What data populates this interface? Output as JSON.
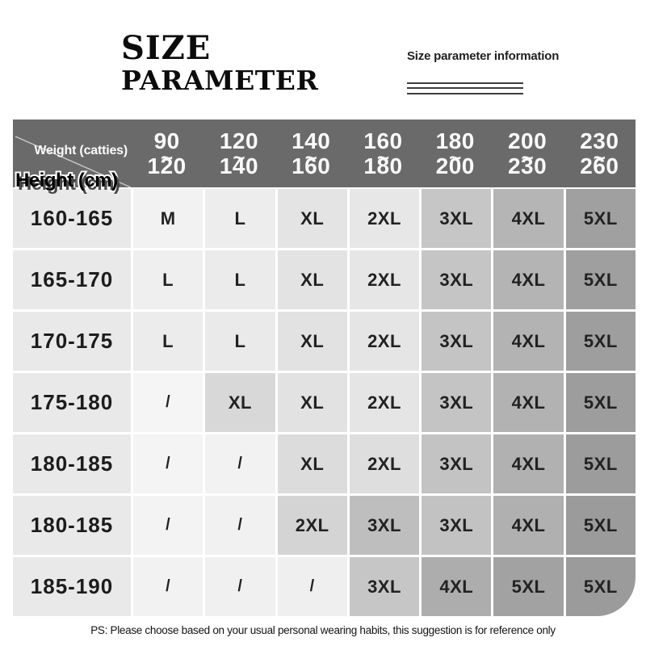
{
  "title": {
    "line1": "SIZE",
    "line2": "PARAMETER"
  },
  "info": {
    "label": "Size parameter information"
  },
  "table": {
    "corner": {
      "weight_label": "Weight (catties)",
      "height_label": "Height (cm)"
    },
    "tilde": "~",
    "weight_columns": [
      {
        "from": "90",
        "to": "120"
      },
      {
        "from": "120",
        "to": "140"
      },
      {
        "from": "140",
        "to": "160"
      },
      {
        "from": "160",
        "to": "180"
      },
      {
        "from": "180",
        "to": "200"
      },
      {
        "from": "200",
        "to": "230"
      },
      {
        "from": "230",
        "to": "260"
      }
    ],
    "rows": [
      {
        "height": "160-165",
        "cells": [
          {
            "v": "M",
            "bg": "#f2f2f2"
          },
          {
            "v": "L",
            "bg": "#ededed"
          },
          {
            "v": "XL",
            "bg": "#e4e4e4"
          },
          {
            "v": "2XL",
            "bg": "#e7e7e7"
          },
          {
            "v": "3XL",
            "bg": "#c6c6c6"
          },
          {
            "v": "4XL",
            "bg": "#b5b5b5"
          },
          {
            "v": "5XL",
            "bg": "#a0a0a0"
          }
        ]
      },
      {
        "height": "165-170",
        "cells": [
          {
            "v": "L",
            "bg": "#efefef"
          },
          {
            "v": "L",
            "bg": "#ebebeb"
          },
          {
            "v": "XL",
            "bg": "#e3e3e3"
          },
          {
            "v": "2XL",
            "bg": "#e6e6e6"
          },
          {
            "v": "3XL",
            "bg": "#c5c5c5"
          },
          {
            "v": "4XL",
            "bg": "#b4b4b4"
          },
          {
            "v": "5XL",
            "bg": "#9f9f9f"
          }
        ]
      },
      {
        "height": "170-175",
        "cells": [
          {
            "v": "L",
            "bg": "#ececec"
          },
          {
            "v": "L",
            "bg": "#eaeaea"
          },
          {
            "v": "XL",
            "bg": "#e2e2e2"
          },
          {
            "v": "2XL",
            "bg": "#e5e5e5"
          },
          {
            "v": "3XL",
            "bg": "#c4c4c4"
          },
          {
            "v": "4XL",
            "bg": "#b3b3b3"
          },
          {
            "v": "5XL",
            "bg": "#9e9e9e"
          }
        ]
      },
      {
        "height": "175-180",
        "cells": [
          {
            "v": "/",
            "bg": "#f5f5f5"
          },
          {
            "v": "XL",
            "bg": "#d8d8d8"
          },
          {
            "v": "XL",
            "bg": "#e2e2e2"
          },
          {
            "v": "2XL",
            "bg": "#e5e5e5"
          },
          {
            "v": "3XL",
            "bg": "#c4c4c4"
          },
          {
            "v": "4XL",
            "bg": "#b2b2b2"
          },
          {
            "v": "5XL",
            "bg": "#9d9d9d"
          }
        ]
      },
      {
        "height": "180-185",
        "cells": [
          {
            "v": "/",
            "bg": "#f4f4f4"
          },
          {
            "v": "/",
            "bg": "#f2f2f2"
          },
          {
            "v": "XL",
            "bg": "#dcdcdc"
          },
          {
            "v": "2XL",
            "bg": "#dedede"
          },
          {
            "v": "3XL",
            "bg": "#c3c3c3"
          },
          {
            "v": "4XL",
            "bg": "#b1b1b1"
          },
          {
            "v": "5XL",
            "bg": "#9c9c9c"
          }
        ]
      },
      {
        "height": "180-185",
        "cells": [
          {
            "v": "/",
            "bg": "#f3f3f3"
          },
          {
            "v": "/",
            "bg": "#f1f1f1"
          },
          {
            "v": "2XL",
            "bg": "#d4d4d4"
          },
          {
            "v": "3XL",
            "bg": "#bebebe"
          },
          {
            "v": "3XL",
            "bg": "#c2c2c2"
          },
          {
            "v": "4XL",
            "bg": "#b0b0b0"
          },
          {
            "v": "5XL",
            "bg": "#9b9b9b"
          }
        ]
      },
      {
        "height": "185-190",
        "cells": [
          {
            "v": "/",
            "bg": "#f2f2f2"
          },
          {
            "v": "/",
            "bg": "#f0f0f0"
          },
          {
            "v": "/",
            "bg": "#efefef"
          },
          {
            "v": "3XL",
            "bg": "#c6c6c6"
          },
          {
            "v": "4XL",
            "bg": "#adadad"
          },
          {
            "v": "5XL",
            "bg": "#a2a2a2"
          },
          {
            "v": "5XL",
            "bg": "#9b9b9b"
          }
        ]
      }
    ]
  },
  "footer": {
    "note": "PS: Please choose based on your usual personal wearing habits, this suggestion is for reference only"
  },
  "colors": {
    "page_bg": "#ffffff",
    "header_bg": "#6a6a6a",
    "header_text": "#fafafa",
    "height_col_bg": "#e9e9e9",
    "diagonal_line": "#cccccc",
    "info_line": "#3c3c3c",
    "title_text": "#0c0c0c"
  },
  "chart_data": {
    "type": "table",
    "title": "SIZE PARAMETER",
    "subtitle": "Size parameter information",
    "row_axis_label": "Height (cm)",
    "column_axis_label": "Weight (catties)",
    "columns": [
      "90~120",
      "120~140",
      "140~160",
      "160~180",
      "180~200",
      "200~230",
      "230~260"
    ],
    "rows": [
      {
        "height": "160-165",
        "sizes": [
          "M",
          "L",
          "XL",
          "2XL",
          "3XL",
          "4XL",
          "5XL"
        ]
      },
      {
        "height": "165-170",
        "sizes": [
          "L",
          "L",
          "XL",
          "2XL",
          "3XL",
          "4XL",
          "5XL"
        ]
      },
      {
        "height": "170-175",
        "sizes": [
          "L",
          "L",
          "XL",
          "2XL",
          "3XL",
          "4XL",
          "5XL"
        ]
      },
      {
        "height": "175-180",
        "sizes": [
          "/",
          "XL",
          "XL",
          "2XL",
          "3XL",
          "4XL",
          "5XL"
        ]
      },
      {
        "height": "180-185",
        "sizes": [
          "/",
          "/",
          "XL",
          "2XL",
          "3XL",
          "4XL",
          "5XL"
        ]
      },
      {
        "height": "180-185",
        "sizes": [
          "/",
          "/",
          "2XL",
          "3XL",
          "3XL",
          "4XL",
          "5XL"
        ]
      },
      {
        "height": "185-190",
        "sizes": [
          "/",
          "/",
          "/",
          "3XL",
          "4XL",
          "5XL",
          "5XL"
        ]
      }
    ],
    "note": "PS: Please choose based on your usual personal wearing habits, this suggestion is for reference only"
  }
}
